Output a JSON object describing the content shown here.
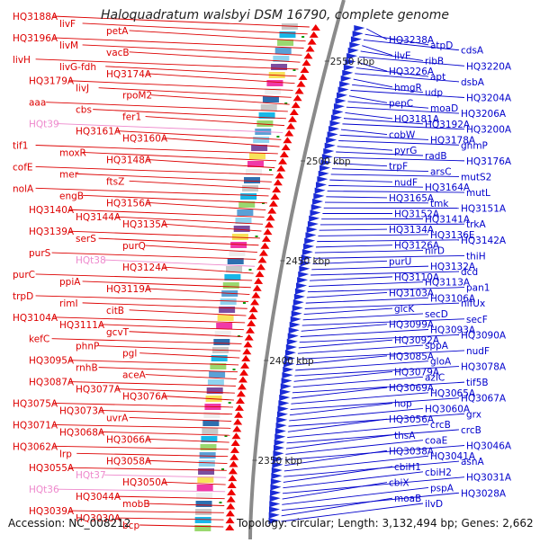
{
  "header": {
    "title": "Haloquadratum walsbyi DSM 16790, complete genome"
  },
  "footer": {
    "accession": "Accession: NC_008212",
    "topology": "Topology: circular; Length: 3,132,494 bp; Genes: 2,662"
  },
  "colors": {
    "left_label": "#dd0000",
    "right_label": "#0000cc",
    "trna_label": "#ee88cc",
    "left_arrow": "#ee0000",
    "right_arrow": "#1a2bd6",
    "backbone": "#888888"
  },
  "scale_marks": [
    "2550 kbp",
    "2500 kbp",
    "2450 kbp",
    "2400 kbp",
    "2350 kbp"
  ],
  "left_genes": [
    {
      "label": "HQ3188A",
      "type": "protein"
    },
    {
      "label": "livF",
      "type": "protein"
    },
    {
      "label": "petA",
      "type": "protein"
    },
    {
      "label": "HQ3196A",
      "type": "protein"
    },
    {
      "label": "livM",
      "type": "protein"
    },
    {
      "label": "vacB",
      "type": "protein"
    },
    {
      "label": "livH",
      "type": "protein"
    },
    {
      "label": "livG-fdh",
      "type": "protein"
    },
    {
      "label": "HQ3174A",
      "type": "protein"
    },
    {
      "label": "HQ3179A",
      "type": "protein"
    },
    {
      "label": "livJ",
      "type": "protein"
    },
    {
      "label": "rpoM2",
      "type": "protein"
    },
    {
      "label": "aaa",
      "type": "protein"
    },
    {
      "label": "cbs",
      "type": "protein"
    },
    {
      "label": "fer1",
      "type": "protein"
    },
    {
      "label": "HQt39",
      "type": "tRNA"
    },
    {
      "label": "HQ3161A",
      "type": "protein"
    },
    {
      "label": "HQ3160A",
      "type": "protein"
    },
    {
      "label": "tif1",
      "type": "protein"
    },
    {
      "label": "moxR",
      "type": "protein"
    },
    {
      "label": "HQ3148A",
      "type": "protein"
    },
    {
      "label": "cofE",
      "type": "protein"
    },
    {
      "label": "mer",
      "type": "protein"
    },
    {
      "label": "ftsZ",
      "type": "protein"
    },
    {
      "label": "nolA",
      "type": "protein"
    },
    {
      "label": "engB",
      "type": "protein"
    },
    {
      "label": "HQ3156A",
      "type": "protein"
    },
    {
      "label": "HQ3140A",
      "type": "protein"
    },
    {
      "label": "HQ3144A",
      "type": "protein"
    },
    {
      "label": "HQ3135A",
      "type": "protein"
    },
    {
      "label": "HQ3139A",
      "type": "protein"
    },
    {
      "label": "serS",
      "type": "protein"
    },
    {
      "label": "purQ",
      "type": "protein"
    },
    {
      "label": "purS",
      "type": "protein"
    },
    {
      "label": "HQt38",
      "type": "tRNA"
    },
    {
      "label": "HQ3124A",
      "type": "protein"
    },
    {
      "label": "purC",
      "type": "protein"
    },
    {
      "label": "ppiA",
      "type": "protein"
    },
    {
      "label": "HQ3119A",
      "type": "protein"
    },
    {
      "label": "trpD",
      "type": "protein"
    },
    {
      "label": "rimI",
      "type": "protein"
    },
    {
      "label": "citB",
      "type": "protein"
    },
    {
      "label": "HQ3104A",
      "type": "protein"
    },
    {
      "label": "HQ3111A",
      "type": "protein"
    },
    {
      "label": "gcvT",
      "type": "protein"
    },
    {
      "label": "kefC",
      "type": "protein"
    },
    {
      "label": "phnP",
      "type": "protein"
    },
    {
      "label": "pgl",
      "type": "protein"
    },
    {
      "label": "HQ3095A",
      "type": "protein"
    },
    {
      "label": "rnhB",
      "type": "protein"
    },
    {
      "label": "aceA",
      "type": "protein"
    },
    {
      "label": "HQ3087A",
      "type": "protein"
    },
    {
      "label": "HQ3077A",
      "type": "protein"
    },
    {
      "label": "HQ3076A",
      "type": "protein"
    },
    {
      "label": "HQ3075A",
      "type": "protein"
    },
    {
      "label": "HQ3073A",
      "type": "protein"
    },
    {
      "label": "uvrA",
      "type": "protein"
    },
    {
      "label": "HQ3071A",
      "type": "protein"
    },
    {
      "label": "HQ3068A",
      "type": "protein"
    },
    {
      "label": "HQ3066A",
      "type": "protein"
    },
    {
      "label": "HQ3062A",
      "type": "protein"
    },
    {
      "label": "lrp",
      "type": "protein"
    },
    {
      "label": "HQ3058A",
      "type": "protein"
    },
    {
      "label": "HQ3055A",
      "type": "protein"
    },
    {
      "label": "HQt37",
      "type": "tRNA"
    },
    {
      "label": "HQ3050A",
      "type": "protein"
    },
    {
      "label": "HQt36",
      "type": "tRNA"
    },
    {
      "label": "HQ3044A",
      "type": "protein"
    },
    {
      "label": "mobB",
      "type": "protein"
    },
    {
      "label": "HQ3039A",
      "type": "protein"
    },
    {
      "label": "HQ3030A",
      "type": "protein"
    },
    {
      "label": "bcp",
      "type": "protein"
    }
  ],
  "right_genes": [
    {
      "label": "HQ3238A"
    },
    {
      "label": "atpD"
    },
    {
      "label": "cdsA"
    },
    {
      "label": "ilvE"
    },
    {
      "label": "ribB"
    },
    {
      "label": "HQ3220A"
    },
    {
      "label": "HQ3226A"
    },
    {
      "label": "apt"
    },
    {
      "label": "dsbA"
    },
    {
      "label": "hmgR"
    },
    {
      "label": "udp"
    },
    {
      "label": "HQ3204A"
    },
    {
      "label": "pepC"
    },
    {
      "label": "moaD"
    },
    {
      "label": "HQ3206A"
    },
    {
      "label": "HQ3181A"
    },
    {
      "label": "HQ3192A"
    },
    {
      "label": "HQ3200A"
    },
    {
      "label": "cobW"
    },
    {
      "label": "HQ3178A"
    },
    {
      "label": "ghmP"
    },
    {
      "label": "pyrG"
    },
    {
      "label": "radB"
    },
    {
      "label": "HQ3176A"
    },
    {
      "label": "trpF"
    },
    {
      "label": "arsC"
    },
    {
      "label": "mutS2"
    },
    {
      "label": "nudF"
    },
    {
      "label": "HQ3164A"
    },
    {
      "label": "mutL"
    },
    {
      "label": "HQ3165A"
    },
    {
      "label": "tmk"
    },
    {
      "label": "HQ3151A"
    },
    {
      "label": "HQ3152A"
    },
    {
      "label": "HQ3141A"
    },
    {
      "label": "trkA"
    },
    {
      "label": "HQ3134A"
    },
    {
      "label": "HQ3136E"
    },
    {
      "label": "HQ3142A"
    },
    {
      "label": "HQ3126A"
    },
    {
      "label": "nirD"
    },
    {
      "label": "thiH"
    },
    {
      "label": "purU"
    },
    {
      "label": "HQ3132A"
    },
    {
      "label": "dcd"
    },
    {
      "label": "HQ3110A"
    },
    {
      "label": "HQ3113A"
    },
    {
      "label": "pan1"
    },
    {
      "label": "HQ3103A"
    },
    {
      "label": "HQ3106A"
    },
    {
      "label": "nifUx"
    },
    {
      "label": "glcK"
    },
    {
      "label": "secD"
    },
    {
      "label": "secF"
    },
    {
      "label": "HQ3099A"
    },
    {
      "label": "HQ3093A"
    },
    {
      "label": "HQ3090A"
    },
    {
      "label": "HQ3092A"
    },
    {
      "label": "sppA"
    },
    {
      "label": "nudF"
    },
    {
      "label": "HQ3085A"
    },
    {
      "label": "gloA"
    },
    {
      "label": "HQ3078A"
    },
    {
      "label": "HQ3079A"
    },
    {
      "label": "azlC"
    },
    {
      "label": "tif5B"
    },
    {
      "label": "HQ3069A"
    },
    {
      "label": "HQ3065A"
    },
    {
      "label": "HQ3067A"
    },
    {
      "label": "hop"
    },
    {
      "label": "HQ3060A"
    },
    {
      "label": "grx"
    },
    {
      "label": "HQ3056A"
    },
    {
      "label": "crcB"
    },
    {
      "label": "crcB"
    },
    {
      "label": "thsA"
    },
    {
      "label": "coaE"
    },
    {
      "label": "HQ3046A"
    },
    {
      "label": "HQ3038A"
    },
    {
      "label": "HQ3041A"
    },
    {
      "label": "asnA"
    },
    {
      "label": "cbiH1"
    },
    {
      "label": "cbiH2"
    },
    {
      "label": "HQ3031A"
    },
    {
      "label": "cbiX"
    },
    {
      "label": "pspA"
    },
    {
      "label": "HQ3028A"
    },
    {
      "label": "moaB"
    },
    {
      "label": "ilvD"
    }
  ]
}
